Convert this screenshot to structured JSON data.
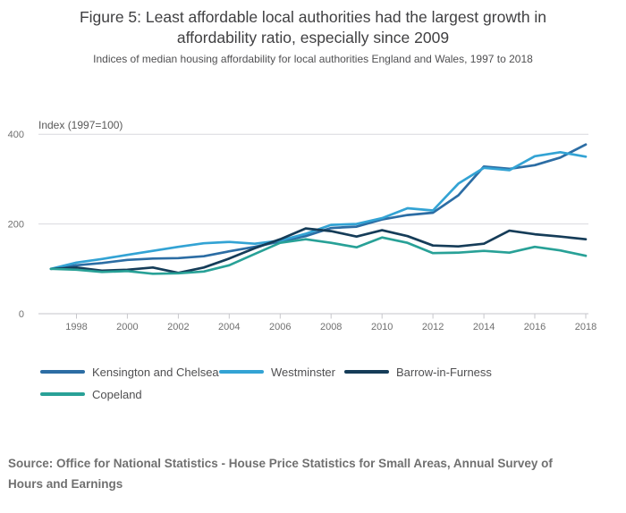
{
  "header": {
    "title": "Figure 5: Least affordable local authorities had the largest growth in\naffordability ratio, especially since 2009",
    "subtitle": "Indices of median housing affordability for local authorities England and Wales, 1997 to 2018"
  },
  "chart_data": {
    "type": "line",
    "title": "Figure 5: Least affordable local authorities had the largest growth in affordability ratio, especially since 2009",
    "subtitle": "Indices of median housing affordability for local authorities England and Wales, 1997 to 2018",
    "y_axis_label": "Index (1997=100)",
    "ylim": [
      0,
      400
    ],
    "y_ticks": [
      0,
      200,
      400
    ],
    "x_ticks": [
      1998,
      2000,
      2002,
      2004,
      2006,
      2008,
      2010,
      2012,
      2014,
      2016,
      2018
    ],
    "x_range": [
      1997,
      2018
    ],
    "grid": "horizontal",
    "legend_position": "bottom",
    "x": [
      1997,
      1998,
      1999,
      2000,
      2001,
      2002,
      2003,
      2004,
      2005,
      2006,
      2007,
      2008,
      2009,
      2010,
      2011,
      2012,
      2013,
      2014,
      2015,
      2016,
      2017,
      2018
    ],
    "series": [
      {
        "name": "Kensington and Chelsea",
        "color": "#2c6da4",
        "values": [
          100,
          108,
          113,
          120,
          123,
          124,
          128,
          139,
          149,
          161,
          173,
          191,
          194,
          210,
          220,
          225,
          264,
          328,
          323,
          331,
          348,
          377
        ]
      },
      {
        "name": "Westminster",
        "color": "#33a3d4",
        "values": [
          100,
          114,
          122,
          131,
          140,
          149,
          157,
          160,
          156,
          163,
          178,
          198,
          200,
          213,
          235,
          230,
          290,
          325,
          320,
          351,
          360,
          350
        ]
      },
      {
        "name": "Barrow-in-Furness",
        "color": "#153c58",
        "values": [
          100,
          103,
          96,
          98,
          103,
          91,
          103,
          123,
          146,
          166,
          190,
          184,
          172,
          186,
          173,
          152,
          150,
          156,
          185,
          177,
          172,
          166
        ]
      },
      {
        "name": "Copeland",
        "color": "#28a197",
        "values": [
          100,
          98,
          93,
          95,
          89,
          90,
          94,
          108,
          133,
          158,
          166,
          158,
          148,
          170,
          158,
          135,
          136,
          140,
          136,
          149,
          141,
          129
        ]
      }
    ]
  },
  "legend": {
    "items": [
      "Kensington and Chelsea",
      "Westminster",
      "Barrow-in-Furness",
      "Copeland"
    ]
  },
  "footer": {
    "source": "Source: Office for National Statistics - House Price Statistics for Small Areas, Annual Survey of\nHours and Earnings"
  }
}
